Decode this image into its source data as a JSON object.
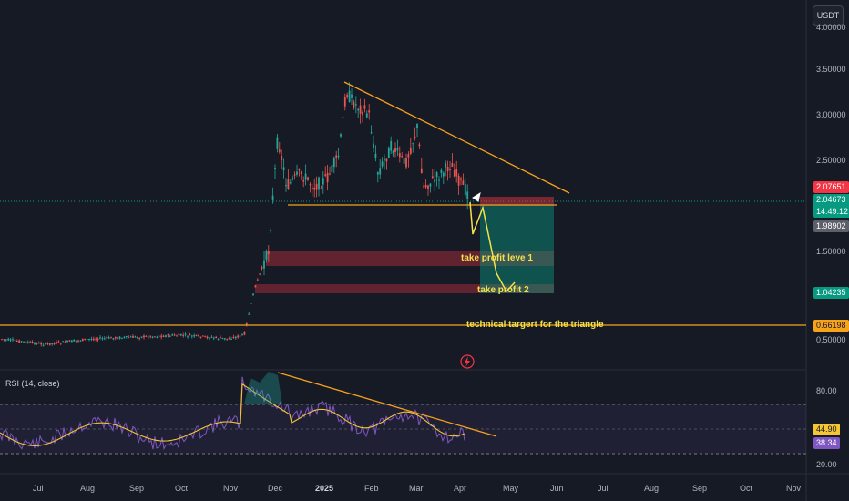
{
  "toolbar": {
    "currency_button": "USDT"
  },
  "main_chart": {
    "price_ticks": [
      "4.00000",
      "3.50000",
      "3.00000",
      "2.50000",
      "1.50000",
      "0.50000"
    ],
    "badges": {
      "high": "2.07651",
      "last": "2.04673",
      "countdown": "14:49:12",
      "low": "1.98902",
      "tp": "1.04235",
      "target": "0.66198"
    },
    "annotations": {
      "tp1": "take profit leve 1",
      "tp2": "take profit 2",
      "target": "technical targert for the triangle"
    }
  },
  "rsi": {
    "title": "RSI (14, close)",
    "ticks": [
      "80.00",
      "20.00"
    ],
    "badges": {
      "ma": "44.90",
      "rsi": "38.34"
    }
  },
  "time_axis": [
    "Jul",
    "Aug",
    "Sep",
    "Oct",
    "Nov",
    "Dec",
    "2025",
    "Feb",
    "Mar",
    "Apr",
    "May",
    "Jun",
    "Jul",
    "Aug",
    "Sep",
    "Oct",
    "Nov"
  ],
  "colors": {
    "bg": "#161a25",
    "up": "#26a69a",
    "down": "#ef5350",
    "trend": "#f7a21b",
    "rsi_line": "#7e57c2",
    "rsi_ma": "#f5c533",
    "tp_zone": "#089981",
    "badge_red": "#f23645",
    "badge_green": "#089981"
  }
}
